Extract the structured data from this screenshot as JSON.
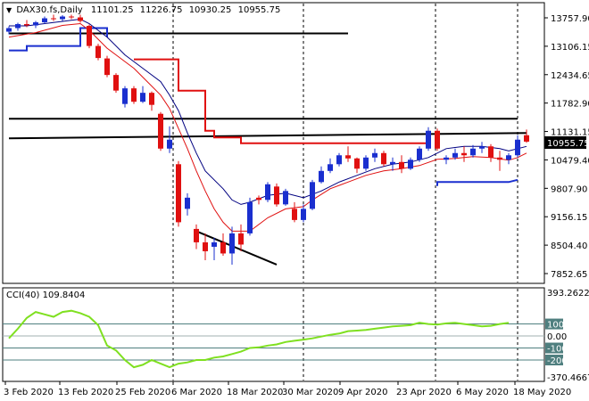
{
  "header": {
    "symbol": "DAX30.fs,Daily",
    "open": "11101.25",
    "high": "11226.75",
    "low": "10930.25",
    "close": "10955.75"
  },
  "price_axis": {
    "ticks": [
      "13757.90",
      "13106.15",
      "12434.65",
      "11782.90",
      "11131.15",
      "10479.40",
      "9807.90",
      "9156.15",
      "8504.40",
      "7852.65"
    ],
    "current_price_label": "10955.75"
  },
  "cci_panel": {
    "title": "CCI(40) 109.8404",
    "ticks": [
      "393.2622",
      "100",
      "0.00",
      "-100",
      "-200",
      "-370.4667"
    ]
  },
  "date_axis": {
    "labels": [
      "3 Feb 2020",
      "13 Feb 2020",
      "25 Feb 2020",
      "6 Mar 2020",
      "18 Mar 2020",
      "30 Mar 2020",
      "9 Apr 2020",
      "23 Apr 2020",
      "6 May 2020",
      "18 May 2020"
    ]
  },
  "colors": {
    "bull": "#1a2fcf",
    "bear": "#e01010",
    "ema_red": "#e01010",
    "ema_navy": "#000080",
    "cci": "#7fe020",
    "level_line": "#000000",
    "cci_level": "#4f7f7f"
  },
  "chart_data": {
    "type": "candlestick",
    "panels": [
      "price",
      "cci"
    ],
    "price": {
      "ylim": [
        7800,
        14050
      ],
      "candles": [
        {
          "o": 13420,
          "h": 13540,
          "l": 13360,
          "c": 13500
        },
        {
          "o": 13500,
          "h": 13620,
          "l": 13440,
          "c": 13590
        },
        {
          "o": 13590,
          "h": 13680,
          "l": 13520,
          "c": 13560
        },
        {
          "o": 13560,
          "h": 13660,
          "l": 13500,
          "c": 13630
        },
        {
          "o": 13630,
          "h": 13760,
          "l": 13600,
          "c": 13720
        },
        {
          "o": 13720,
          "h": 13800,
          "l": 13660,
          "c": 13700
        },
        {
          "o": 13700,
          "h": 13790,
          "l": 13660,
          "c": 13760
        },
        {
          "o": 13760,
          "h": 13800,
          "l": 13700,
          "c": 13740
        },
        {
          "o": 13740,
          "h": 13800,
          "l": 13620,
          "c": 13660
        },
        {
          "o": 13550,
          "h": 13580,
          "l": 13050,
          "c": 13100
        },
        {
          "o": 13100,
          "h": 13150,
          "l": 12780,
          "c": 12830
        },
        {
          "o": 12820,
          "h": 12880,
          "l": 12400,
          "c": 12450
        },
        {
          "o": 12450,
          "h": 12490,
          "l": 12050,
          "c": 12100
        },
        {
          "o": 11800,
          "h": 12200,
          "l": 11720,
          "c": 12150
        },
        {
          "o": 12150,
          "h": 12200,
          "l": 11800,
          "c": 11850
        },
        {
          "o": 11850,
          "h": 12200,
          "l": 11820,
          "c": 12050
        },
        {
          "o": 12050,
          "h": 12080,
          "l": 11650,
          "c": 11780
        },
        {
          "o": 11580,
          "h": 11620,
          "l": 10750,
          "c": 10800
        },
        {
          "o": 10800,
          "h": 11300,
          "l": 10700,
          "c": 11000
        },
        {
          "o": 10450,
          "h": 10520,
          "l": 9050,
          "c": 9150
        },
        {
          "o": 9450,
          "h": 9800,
          "l": 9300,
          "c": 9700
        },
        {
          "o": 9000,
          "h": 9100,
          "l": 8550,
          "c": 8700
        },
        {
          "o": 8700,
          "h": 8900,
          "l": 8300,
          "c": 8500
        },
        {
          "o": 8600,
          "h": 8800,
          "l": 8300,
          "c": 8700
        },
        {
          "o": 8700,
          "h": 8900,
          "l": 8400,
          "c": 8450
        },
        {
          "o": 8450,
          "h": 9050,
          "l": 8200,
          "c": 8900
        },
        {
          "o": 8900,
          "h": 9100,
          "l": 8500,
          "c": 8650
        },
        {
          "o": 8900,
          "h": 9700,
          "l": 8850,
          "c": 9600
        },
        {
          "o": 9700,
          "h": 9750,
          "l": 9550,
          "c": 9650
        },
        {
          "o": 9650,
          "h": 10050,
          "l": 9600,
          "c": 10000
        },
        {
          "o": 9950,
          "h": 10020,
          "l": 9500,
          "c": 9550
        },
        {
          "o": 9550,
          "h": 9900,
          "l": 9520,
          "c": 9850
        },
        {
          "o": 9450,
          "h": 9600,
          "l": 9150,
          "c": 9200
        },
        {
          "o": 9200,
          "h": 9550,
          "l": 9150,
          "c": 9450
        },
        {
          "o": 9450,
          "h": 10100,
          "l": 9420,
          "c": 10050
        },
        {
          "o": 10050,
          "h": 10400,
          "l": 10020,
          "c": 10300
        },
        {
          "o": 10300,
          "h": 10580,
          "l": 10250,
          "c": 10450
        },
        {
          "o": 10450,
          "h": 10700,
          "l": 10400,
          "c": 10650
        },
        {
          "o": 10650,
          "h": 10850,
          "l": 10500,
          "c": 10580
        },
        {
          "o": 10580,
          "h": 10600,
          "l": 10250,
          "c": 10350
        },
        {
          "o": 10350,
          "h": 10650,
          "l": 10300,
          "c": 10600
        },
        {
          "o": 10600,
          "h": 10800,
          "l": 10500,
          "c": 10700
        },
        {
          "o": 10700,
          "h": 10750,
          "l": 10400,
          "c": 10450
        },
        {
          "o": 10450,
          "h": 10600,
          "l": 10300,
          "c": 10500
        },
        {
          "o": 10500,
          "h": 10650,
          "l": 10250,
          "c": 10350
        },
        {
          "o": 10350,
          "h": 10600,
          "l": 10320,
          "c": 10550
        },
        {
          "o": 10550,
          "h": 10850,
          "l": 10500,
          "c": 10800
        },
        {
          "o": 10800,
          "h": 11280,
          "l": 10750,
          "c": 11200
        },
        {
          "o": 11200,
          "h": 11250,
          "l": 10750,
          "c": 10800
        },
        {
          "o": 10550,
          "h": 10650,
          "l": 10450,
          "c": 10600
        },
        {
          "o": 10600,
          "h": 10800,
          "l": 10550,
          "c": 10700
        },
        {
          "o": 10700,
          "h": 10850,
          "l": 10500,
          "c": 10650
        },
        {
          "o": 10650,
          "h": 10880,
          "l": 10600,
          "c": 10800
        },
        {
          "o": 10800,
          "h": 10950,
          "l": 10700,
          "c": 10850
        },
        {
          "o": 10850,
          "h": 10900,
          "l": 10500,
          "c": 10600
        },
        {
          "o": 10600,
          "h": 10750,
          "l": 10300,
          "c": 10550
        },
        {
          "o": 10550,
          "h": 10700,
          "l": 10450,
          "c": 10650
        },
        {
          "o": 10650,
          "h": 11100,
          "l": 10600,
          "c": 11000
        },
        {
          "o": 11100,
          "h": 11227,
          "l": 10930,
          "c": 10956
        }
      ],
      "ema_red": [
        [
          0,
          13300
        ],
        [
          3,
          13400
        ],
        [
          6,
          13560
        ],
        [
          8,
          13600
        ],
        [
          9,
          13450
        ],
        [
          11,
          13050
        ],
        [
          12,
          12900
        ],
        [
          14,
          12600
        ],
        [
          15,
          12400
        ],
        [
          17,
          12000
        ],
        [
          18,
          11700
        ],
        [
          19,
          11250
        ],
        [
          20,
          10800
        ],
        [
          21,
          10300
        ],
        [
          22,
          9850
        ],
        [
          23,
          9450
        ],
        [
          24,
          9150
        ],
        [
          25,
          8950
        ],
        [
          27,
          8950
        ],
        [
          29,
          9250
        ],
        [
          31,
          9450
        ],
        [
          33,
          9500
        ],
        [
          34,
          9650
        ],
        [
          36,
          9900
        ],
        [
          38,
          10050
        ],
        [
          40,
          10200
        ],
        [
          42,
          10300
        ],
        [
          44,
          10350
        ],
        [
          46,
          10420
        ],
        [
          48,
          10560
        ],
        [
          50,
          10580
        ],
        [
          52,
          10620
        ],
        [
          54,
          10600
        ],
        [
          56,
          10540
        ],
        [
          57,
          10600
        ],
        [
          58,
          10700
        ]
      ],
      "ema_navy": [
        [
          0,
          13550
        ],
        [
          2,
          13550
        ],
        [
          4,
          13600
        ],
        [
          6,
          13650
        ],
        [
          8,
          13700
        ],
        [
          9,
          13600
        ],
        [
          11,
          13300
        ],
        [
          13,
          12900
        ],
        [
          15,
          12600
        ],
        [
          17,
          12300
        ],
        [
          18,
          12000
        ],
        [
          19,
          11650
        ],
        [
          20,
          11150
        ],
        [
          21,
          10700
        ],
        [
          22,
          10300
        ],
        [
          24,
          9900
        ],
        [
          25,
          9650
        ],
        [
          26,
          9550
        ],
        [
          27,
          9600
        ],
        [
          29,
          9750
        ],
        [
          31,
          9800
        ],
        [
          33,
          9700
        ],
        [
          35,
          9850
        ],
        [
          37,
          10050
        ],
        [
          39,
          10200
        ],
        [
          41,
          10350
        ],
        [
          43,
          10450
        ],
        [
          45,
          10500
        ],
        [
          47,
          10600
        ],
        [
          49,
          10800
        ],
        [
          51,
          10850
        ],
        [
          53,
          10850
        ],
        [
          55,
          10800
        ],
        [
          56,
          10750
        ],
        [
          58,
          10850
        ]
      ],
      "support_resistance_lines": [
        {
          "from": [
            0,
            13380
          ],
          "to": [
            38,
            13380
          ]
        },
        {
          "from": [
            0,
            11470
          ],
          "to": [
            57,
            11470
          ]
        },
        {
          "from": [
            0,
            11030
          ],
          "to": [
            58,
            11150
          ]
        },
        {
          "from": [
            21,
            8950
          ],
          "to": [
            30,
            8200
          ]
        }
      ],
      "step_lines": [
        {
          "color": "ema_red",
          "points": [
            [
              14,
              12800
            ],
            [
              19,
              12800
            ],
            [
              19,
              12100
            ],
            [
              22,
              12100
            ],
            [
              22,
              11200
            ],
            [
              23,
              11200
            ],
            [
              23,
              11050
            ],
            [
              26,
              11050
            ],
            [
              26,
              10920
            ],
            [
              47,
              10920
            ],
            [
              47,
              11000
            ]
          ]
        },
        {
          "color": "bull",
          "points": [
            [
              0,
              13000
            ],
            [
              2,
              13000
            ],
            [
              2,
              13100
            ],
            [
              8,
              13100
            ],
            [
              8,
              13500
            ],
            [
              11,
              13500
            ],
            [
              11,
              13300
            ]
          ]
        },
        {
          "color": "bull",
          "points": [
            [
              48,
              9960
            ],
            [
              48,
              10050
            ],
            [
              56,
              10050
            ],
            [
              57,
              10100
            ]
          ]
        }
      ]
    },
    "cci": {
      "ylim": [
        -370.4667,
        393.2622
      ],
      "levels": [
        100,
        0,
        -100,
        -200
      ],
      "values": [
        -20,
        60,
        150,
        200,
        180,
        160,
        200,
        210,
        190,
        160,
        90,
        -80,
        -120,
        -200,
        -260,
        -240,
        -200,
        -230,
        -260,
        -230,
        -220,
        -200,
        -200,
        -180,
        -170,
        -150,
        -130,
        -100,
        -95,
        -80,
        -70,
        -50,
        -40,
        -30,
        -20,
        -5,
        10,
        20,
        40,
        45,
        50,
        60,
        70,
        80,
        85,
        90,
        110,
        100,
        95,
        105,
        110,
        100,
        90,
        80,
        85,
        100,
        110
      ]
    }
  }
}
